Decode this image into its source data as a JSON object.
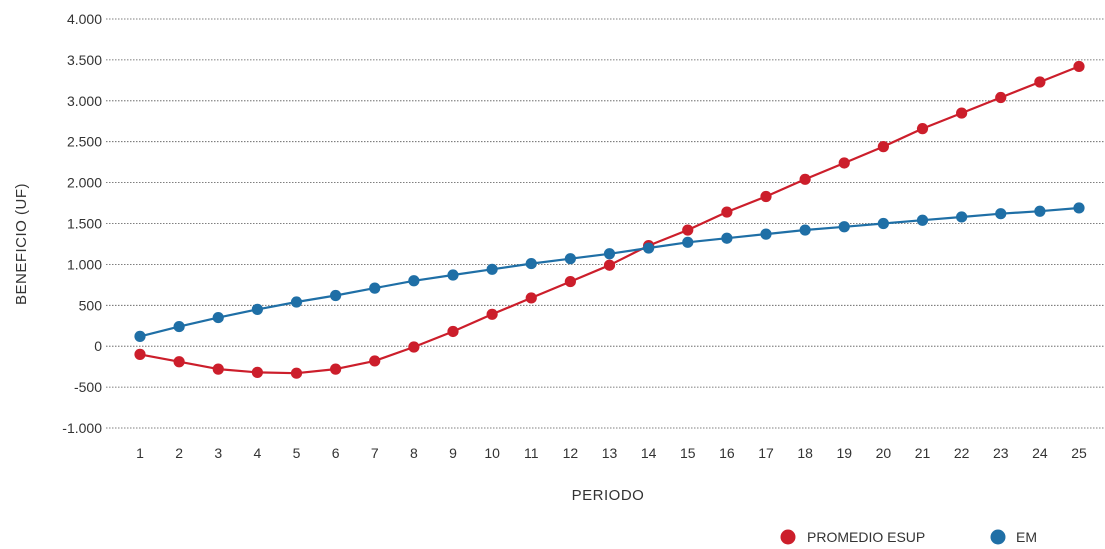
{
  "chart_data": {
    "type": "line",
    "xlabel": "PERIODO",
    "ylabel": "BENEFICIO (UF)",
    "ylim": [
      -1000,
      4000
    ],
    "yticks": [
      -1000,
      -500,
      0,
      500,
      1000,
      1500,
      2000,
      2500,
      3000,
      3500,
      4000
    ],
    "ytick_labels": [
      "-1.000",
      "-500",
      "0",
      "500",
      "1.000",
      "1.500",
      "2.000",
      "2.500",
      "3.000",
      "3.500",
      "4.000"
    ],
    "x": [
      1,
      2,
      3,
      4,
      5,
      6,
      7,
      8,
      9,
      10,
      11,
      12,
      13,
      14,
      15,
      16,
      17,
      18,
      19,
      20,
      21,
      22,
      23,
      24,
      25
    ],
    "grid": "horizontal dotted",
    "legend_position": "bottom-right",
    "series": [
      {
        "name": "PROMEDIO ESUP",
        "color": "#cc1e2b",
        "values": [
          -100,
          -190,
          -280,
          -320,
          -330,
          -280,
          -180,
          -10,
          180,
          390,
          590,
          790,
          990,
          1230,
          1420,
          1640,
          1830,
          2040,
          2240,
          2440,
          2660,
          2850,
          3040,
          3230,
          3420
        ]
      },
      {
        "name": "EM",
        "color": "#1f6fa6",
        "values": [
          120,
          240,
          350,
          450,
          540,
          620,
          710,
          800,
          870,
          940,
          1010,
          1070,
          1130,
          1200,
          1270,
          1320,
          1370,
          1420,
          1460,
          1500,
          1540,
          1580,
          1620,
          1650,
          1690
        ]
      }
    ]
  }
}
